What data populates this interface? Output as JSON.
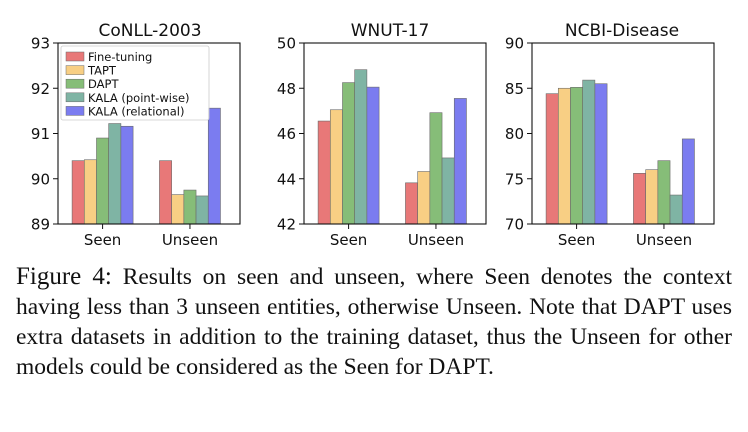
{
  "chart_data": [
    {
      "type": "bar",
      "title": "CoNLL-2003",
      "categories": [
        "Seen",
        "Unseen"
      ],
      "ylim": [
        89,
        93
      ],
      "yticks": [
        "89",
        "90",
        "91",
        "92",
        "93"
      ],
      "series": [
        {
          "name": "Fine-tuning",
          "values": [
            90.4,
            90.4
          ]
        },
        {
          "name": "TAPT",
          "values": [
            90.42,
            89.65
          ]
        },
        {
          "name": "DAPT",
          "values": [
            90.9,
            89.75
          ]
        },
        {
          "name": "KALA (point-wise)",
          "values": [
            91.22,
            89.62
          ]
        },
        {
          "name": "KALA (relational)",
          "values": [
            91.16,
            91.56
          ]
        }
      ],
      "legend": "top-left"
    },
    {
      "type": "bar",
      "title": "WNUT-17",
      "categories": [
        "Seen",
        "Unseen"
      ],
      "ylim": [
        42,
        50
      ],
      "yticks": [
        "42",
        "44",
        "46",
        "48",
        "50"
      ],
      "series": [
        {
          "name": "Fine-tuning",
          "values": [
            46.55,
            43.82
          ]
        },
        {
          "name": "TAPT",
          "values": [
            47.05,
            44.32
          ]
        },
        {
          "name": "DAPT",
          "values": [
            48.25,
            46.92
          ]
        },
        {
          "name": "KALA (point-wise)",
          "values": [
            48.82,
            44.92
          ]
        },
        {
          "name": "KALA (relational)",
          "values": [
            48.05,
            47.55
          ]
        }
      ]
    },
    {
      "type": "bar",
      "title": "NCBI-Disease",
      "categories": [
        "Seen",
        "Unseen"
      ],
      "ylim": [
        70,
        90
      ],
      "yticks": [
        "70",
        "75",
        "80",
        "85",
        "90"
      ],
      "series": [
        {
          "name": "Fine-tuning",
          "values": [
            84.4,
            75.6
          ]
        },
        {
          "name": "TAPT",
          "values": [
            85.0,
            76.0
          ]
        },
        {
          "name": "DAPT",
          "values": [
            85.1,
            77.0
          ]
        },
        {
          "name": "KALA (point-wise)",
          "values": [
            85.9,
            73.2
          ]
        },
        {
          "name": "KALA (relational)",
          "values": [
            85.5,
            79.4
          ]
        }
      ]
    }
  ],
  "colors": {
    "Fine-tuning": "#e87878",
    "TAPT": "#f8cf84",
    "DAPT": "#86bd78",
    "KALA (point-wise)": "#7fb4a4",
    "KALA (relational)": "#7b7cf0"
  },
  "caption": {
    "label": "Figure 4:",
    "text": "Results on seen and unseen, where Seen denotes the context having less than 3 unseen entities, otherwise Unseen. Note that DAPT uses extra datasets in addition to the training dataset, thus the Unseen for other models could be considered as the Seen for DAPT."
  }
}
